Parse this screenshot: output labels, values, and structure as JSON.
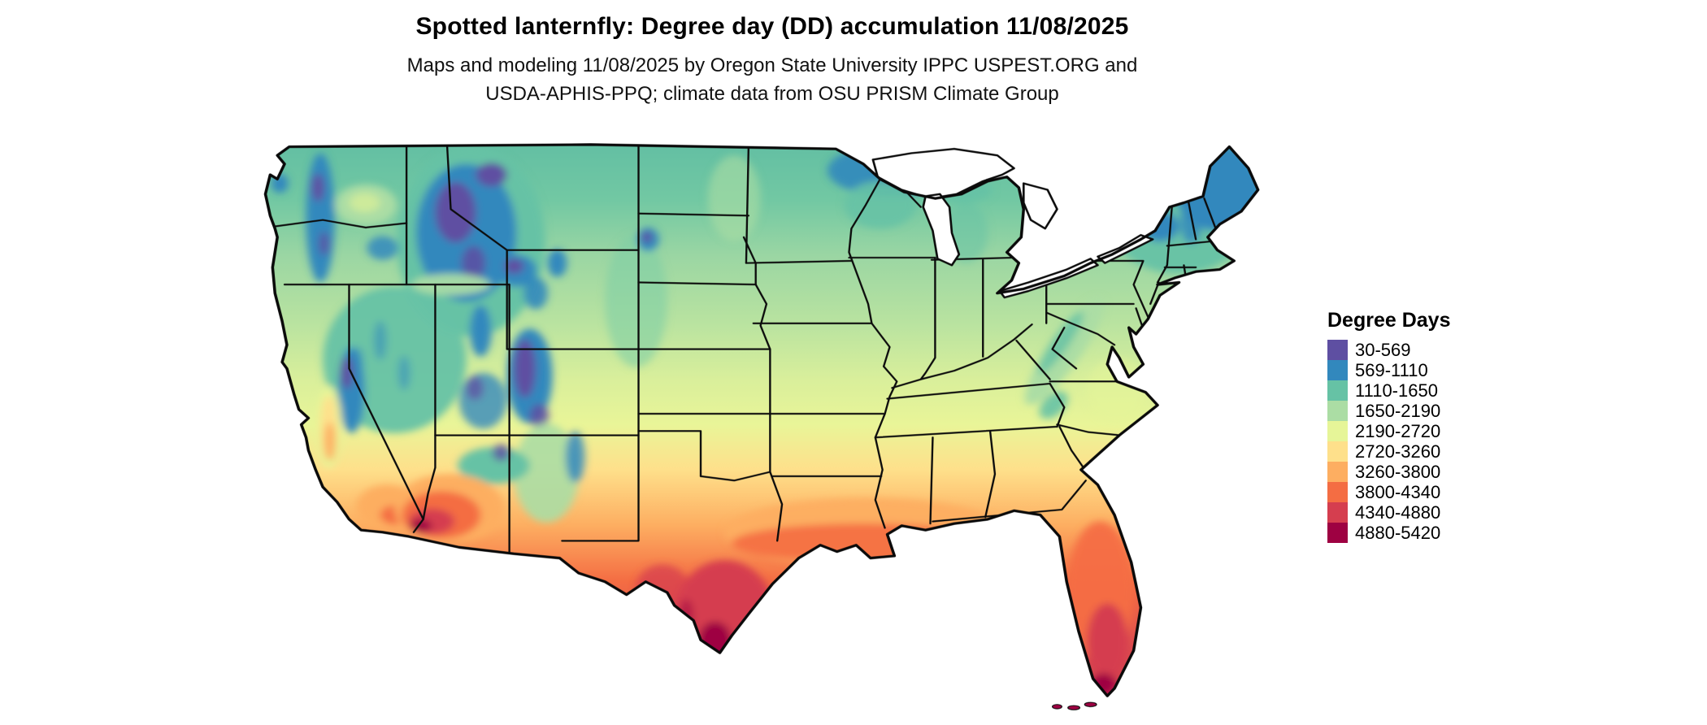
{
  "header": {
    "title": "Spotted lanternfly: Degree day (DD) accumulation 11/08/2025",
    "subtitle_line1": "Maps and modeling 11/08/2025 by Oregon State University IPPC USPEST.ORG and",
    "subtitle_line2": "USDA-APHIS-PPQ; climate data from OSU PRISM Climate Group"
  },
  "legend": {
    "title": "Degree Days",
    "items": [
      {
        "label": "30-569",
        "color": "#5e4fa2"
      },
      {
        "label": "569-1110",
        "color": "#3288bd"
      },
      {
        "label": "1110-1650",
        "color": "#66c2a5"
      },
      {
        "label": "1650-2190",
        "color": "#abdda4"
      },
      {
        "label": "2190-2720",
        "color": "#e6f598"
      },
      {
        "label": "2720-3260",
        "color": "#fee08b"
      },
      {
        "label": "3260-3800",
        "color": "#fdae61"
      },
      {
        "label": "3800-4340",
        "color": "#f46d43"
      },
      {
        "label": "4340-4880",
        "color": "#d53e4f"
      },
      {
        "label": "4880-5420",
        "color": "#9e0142"
      }
    ]
  },
  "map": {
    "region": "Continental United States",
    "kind": "degree-day accumulation choropleth"
  }
}
